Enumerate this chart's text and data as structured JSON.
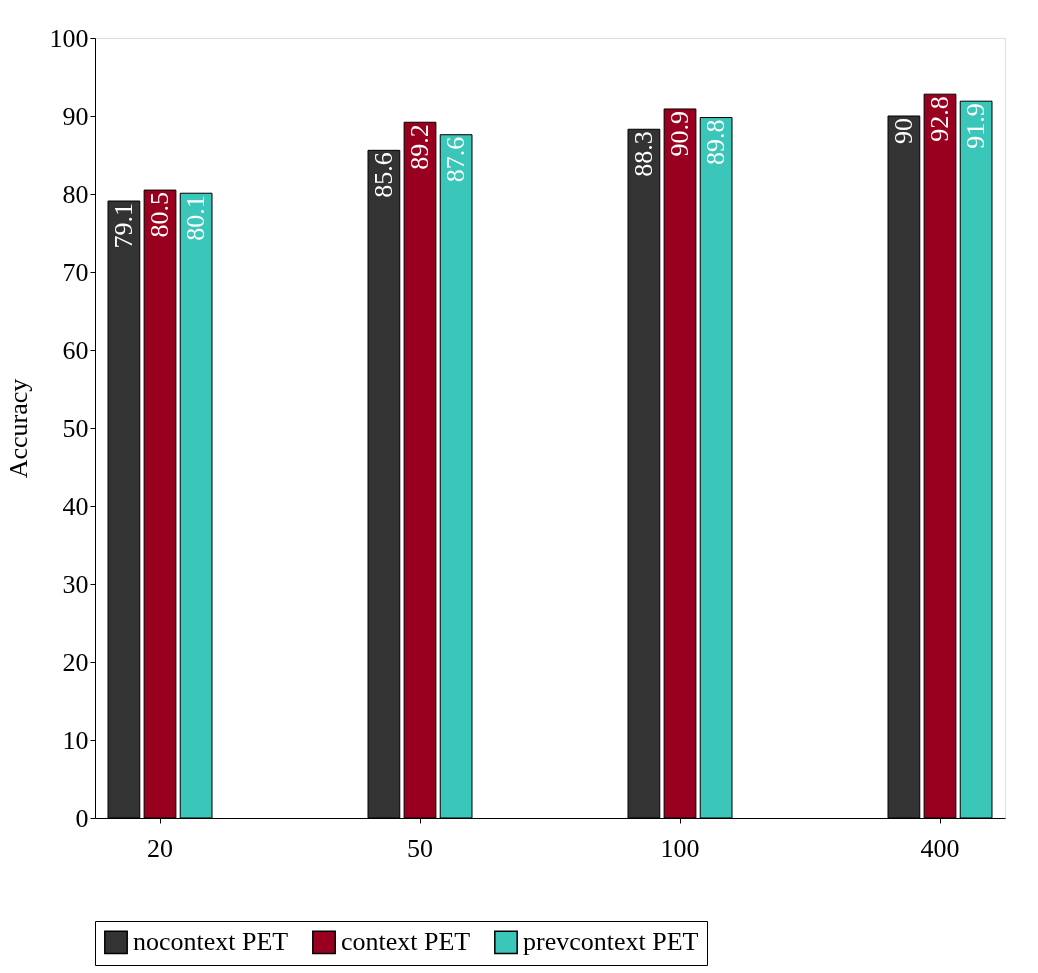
{
  "chart_data": {
    "type": "bar",
    "ylabel": "Accuracy",
    "categories": [
      "20",
      "50",
      "100",
      "400"
    ],
    "series": [
      {
        "name": "nocontext PET",
        "color": "#333333",
        "values": [
          79.1,
          85.6,
          88.3,
          90
        ]
      },
      {
        "name": "context PET",
        "color": "#990020",
        "values": [
          80.5,
          89.2,
          90.9,
          92.8
        ]
      },
      {
        "name": "prevcontext PET",
        "color": "#3ac6b8",
        "values": [
          80.1,
          87.6,
          89.8,
          91.9
        ]
      }
    ],
    "ylim": [
      0,
      100
    ],
    "yticks": [
      0,
      10,
      20,
      30,
      40,
      50,
      60,
      70,
      80,
      90,
      100
    ],
    "grid": false,
    "legend": "bottom",
    "data_labels": true
  }
}
